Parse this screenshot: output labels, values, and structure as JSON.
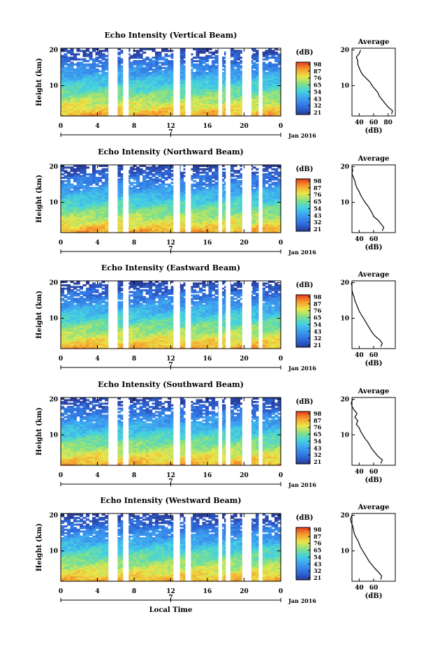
{
  "chart_data": [
    {
      "type": "heatmap",
      "title": "Echo Intensity (Vertical Beam)",
      "ylabel": "Height (km)",
      "x_ticks": [
        "0",
        "4",
        "8",
        "12",
        "16",
        "20",
        "0"
      ],
      "x_range_hours": [
        0,
        24
      ],
      "y_ticks": [
        "10",
        "20"
      ],
      "ylim_km": [
        1.5,
        20.5
      ],
      "date_tick": "7",
      "date_label": "Jan 2016",
      "colorbar": {
        "unit": "(dB)",
        "ticks": [
          "98",
          "87",
          "76",
          "65",
          "54",
          "43",
          "32",
          "21"
        ]
      },
      "gaps_hours": [
        [
          5.2,
          6.2
        ],
        [
          6.8,
          7.4
        ],
        [
          12.3,
          13.0
        ],
        [
          13.6,
          14.2
        ],
        [
          17.2,
          17.6
        ],
        [
          18.0,
          18.5
        ],
        [
          19.8,
          20.8
        ],
        [
          21.6,
          22.0
        ]
      ],
      "profile": {
        "title": "Average",
        "xlabel": "(dB)",
        "x_ticks": [
          "40",
          "60",
          "80"
        ],
        "y_ticks": [
          "10",
          "20"
        ],
        "height_km": [
          2,
          3,
          4,
          5,
          6,
          7,
          8,
          9,
          10,
          11,
          12,
          13,
          14,
          15,
          16,
          17,
          18,
          19,
          20
        ],
        "db": [
          85,
          86,
          80,
          76,
          72,
          68,
          66,
          62,
          58,
          55,
          50,
          45,
          42,
          40,
          38,
          38,
          36,
          40,
          42
        ]
      }
    },
    {
      "type": "heatmap",
      "title": "Echo Intensity (Northward Beam)",
      "ylabel": "Height (km)",
      "x_ticks": [
        "0",
        "4",
        "8",
        "12",
        "16",
        "20",
        "0"
      ],
      "x_range_hours": [
        0,
        24
      ],
      "y_ticks": [
        "10",
        "20"
      ],
      "ylim_km": [
        1.5,
        20.5
      ],
      "date_tick": "7",
      "date_label": "Jan 2016",
      "colorbar": {
        "unit": "(dB)",
        "ticks": [
          "98",
          "87",
          "76",
          "65",
          "54",
          "43",
          "32",
          "21"
        ]
      },
      "gaps_hours": [
        [
          5.2,
          6.2
        ],
        [
          6.8,
          7.4
        ],
        [
          12.3,
          13.0
        ],
        [
          13.6,
          14.2
        ],
        [
          17.2,
          17.6
        ],
        [
          18.0,
          18.5
        ],
        [
          19.8,
          20.8
        ],
        [
          21.6,
          22.0
        ]
      ],
      "profile": {
        "title": "Average",
        "xlabel": "(dB)",
        "x_ticks": [
          "40",
          "60"
        ],
        "y_ticks": [
          "10",
          "20"
        ],
        "height_km": [
          2,
          3,
          4,
          5,
          6,
          7,
          8,
          9,
          10,
          11,
          12,
          13,
          14,
          15,
          16,
          17,
          18,
          19,
          20
        ],
        "db": [
          72,
          74,
          70,
          66,
          60,
          58,
          55,
          52,
          48,
          45,
          42,
          40,
          37,
          35,
          34,
          32,
          30,
          31,
          30
        ]
      }
    },
    {
      "type": "heatmap",
      "title": "Echo Intensity (Eastward Beam)",
      "ylabel": "Height (km)",
      "x_ticks": [
        "0",
        "4",
        "8",
        "12",
        "16",
        "20",
        "0"
      ],
      "x_range_hours": [
        0,
        24
      ],
      "y_ticks": [
        "10",
        "20"
      ],
      "ylim_km": [
        1.5,
        20.5
      ],
      "date_tick": "7",
      "date_label": "Jan 2016",
      "colorbar": {
        "unit": "(dB)",
        "ticks": [
          "98",
          "87",
          "76",
          "65",
          "54",
          "43",
          "32",
          "21"
        ]
      },
      "gaps_hours": [
        [
          5.2,
          6.2
        ],
        [
          6.8,
          7.4
        ],
        [
          12.3,
          13.0
        ],
        [
          13.6,
          14.2
        ],
        [
          17.2,
          17.6
        ],
        [
          18.0,
          18.5
        ],
        [
          19.8,
          20.8
        ],
        [
          21.6,
          22.0
        ]
      ],
      "profile": {
        "title": "Average",
        "xlabel": "(dB)",
        "x_ticks": [
          "40",
          "60"
        ],
        "y_ticks": [
          "10",
          "20"
        ],
        "height_km": [
          2,
          3,
          4,
          5,
          6,
          7,
          8,
          9,
          10,
          11,
          12,
          13,
          14,
          15,
          16,
          17,
          18,
          19,
          20
        ],
        "db": [
          70,
          72,
          68,
          62,
          58,
          55,
          52,
          49,
          46,
          43,
          40,
          38,
          36,
          34,
          33,
          31,
          30,
          30,
          29
        ]
      }
    },
    {
      "type": "heatmap",
      "title": "Echo Intensity (Southward Beam)",
      "ylabel": "Height (km)",
      "x_ticks": [
        "0",
        "4",
        "8",
        "12",
        "16",
        "20",
        "0"
      ],
      "x_range_hours": [
        0,
        24
      ],
      "y_ticks": [
        "10",
        "20"
      ],
      "ylim_km": [
        1.5,
        20.5
      ],
      "date_tick": "7",
      "date_label": "Jan 2016",
      "colorbar": {
        "unit": "(dB)",
        "ticks": [
          "98",
          "87",
          "76",
          "65",
          "54",
          "43",
          "32",
          "21"
        ]
      },
      "gaps_hours": [
        [
          5.2,
          6.2
        ],
        [
          6.8,
          7.4
        ],
        [
          12.3,
          13.0
        ],
        [
          13.6,
          14.2
        ],
        [
          17.2,
          17.6
        ],
        [
          18.0,
          18.5
        ],
        [
          19.8,
          20.8
        ],
        [
          21.6,
          22.0
        ]
      ],
      "profile": {
        "title": "Average",
        "xlabel": "(dB)",
        "x_ticks": [
          "40",
          "60"
        ],
        "y_ticks": [
          "10",
          "20"
        ],
        "height_km": [
          2,
          3,
          4,
          5,
          6,
          7,
          8,
          9,
          10,
          11,
          12,
          13,
          14,
          15,
          16,
          17,
          18,
          19,
          20
        ],
        "db": [
          70,
          72,
          66,
          62,
          58,
          55,
          52,
          48,
          45,
          42,
          40,
          36,
          38,
          34,
          37,
          33,
          30,
          29,
          31
        ]
      }
    },
    {
      "type": "heatmap",
      "title": "Echo Intensity (Westward Beam)",
      "ylabel": "Height (km)",
      "xlabel": "Local Time",
      "x_ticks": [
        "0",
        "4",
        "8",
        "12",
        "16",
        "20",
        "0"
      ],
      "x_range_hours": [
        0,
        24
      ],
      "y_ticks": [
        "10",
        "20"
      ],
      "ylim_km": [
        1.5,
        20.5
      ],
      "date_tick": "7",
      "date_label": "Jan 2016",
      "colorbar": {
        "unit": "(dB)",
        "ticks": [
          "98",
          "87",
          "76",
          "65",
          "54",
          "43",
          "32",
          "21"
        ]
      },
      "gaps_hours": [
        [
          5.2,
          6.2
        ],
        [
          6.8,
          7.4
        ],
        [
          12.3,
          13.0
        ],
        [
          13.6,
          14.2
        ],
        [
          17.2,
          17.6
        ],
        [
          18.0,
          18.5
        ],
        [
          19.8,
          20.8
        ],
        [
          21.6,
          22.0
        ]
      ],
      "profile": {
        "title": "Average",
        "xlabel": "(dB)",
        "x_ticks": [
          "40",
          "60"
        ],
        "y_ticks": [
          "10",
          "20"
        ],
        "height_km": [
          2,
          3,
          4,
          5,
          6,
          7,
          8,
          9,
          10,
          11,
          12,
          13,
          14,
          15,
          16,
          17,
          18,
          19,
          20
        ],
        "db": [
          70,
          71,
          67,
          62,
          58,
          54,
          51,
          48,
          45,
          42,
          40,
          38,
          35,
          33,
          32,
          31,
          29,
          28,
          30
        ]
      }
    }
  ]
}
